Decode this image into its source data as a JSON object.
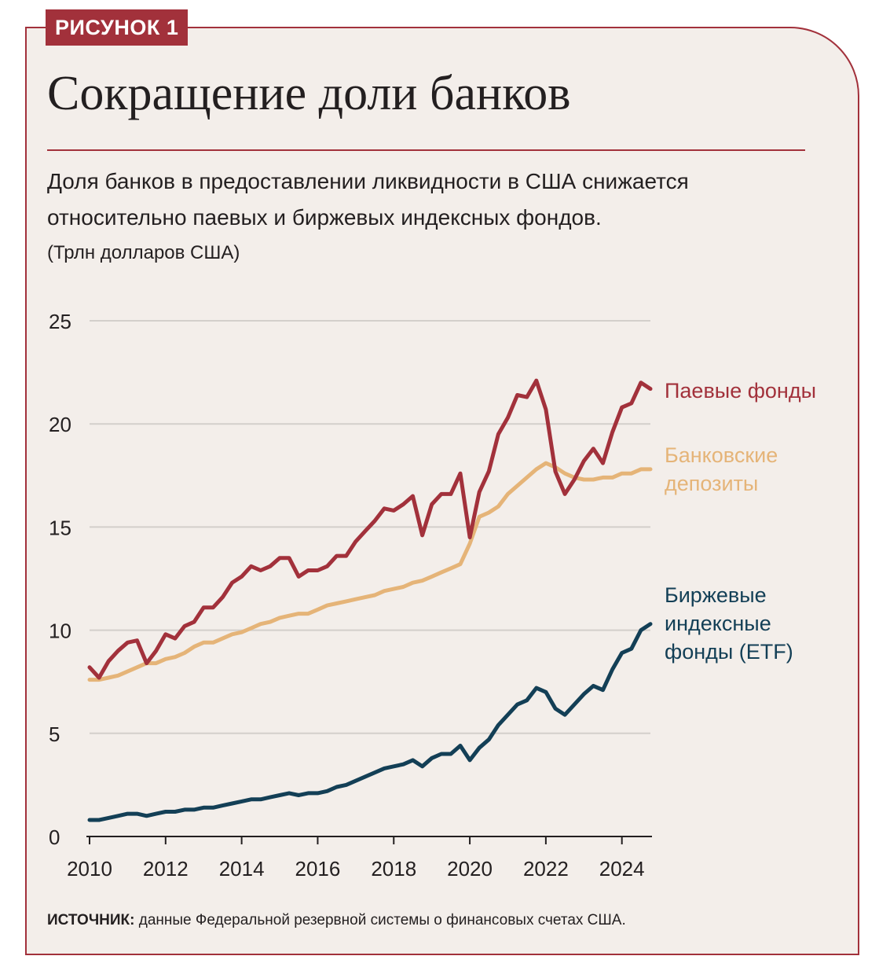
{
  "figure_label": "РИСУНОК 1",
  "title": "Сокращение доли банков",
  "subtitle": "Доля банков в предоставлении ликвидности в США снижается относительно паевых и биржевых индексных фондов.",
  "units": "(Трлн долларов США)",
  "source_label": "ИСТОЧНИК:",
  "source_text": " данные Федеральной резервной системы о финансовых счетах США.",
  "colors": {
    "accent": "#a2313b",
    "mutual_funds": "#a2313b",
    "bank_deposits": "#e5b478",
    "etf": "#133f56",
    "grid": "#d3cfcb",
    "background": "#f3eeea"
  },
  "chart_data": {
    "type": "line",
    "title": "Сокращение доли банков",
    "xlabel": "",
    "ylabel": "(Трлн долларов США)",
    "xlim": [
      2010,
      2024.75
    ],
    "ylim": [
      0,
      25
    ],
    "x_ticks": [
      "2010",
      "2012",
      "2014",
      "2016",
      "2018",
      "2020",
      "2022",
      "2024"
    ],
    "x_tick_values": [
      2010,
      2012,
      2014,
      2016,
      2018,
      2020,
      2022,
      2024
    ],
    "y_ticks": [
      "0",
      "5",
      "10",
      "15",
      "20",
      "25"
    ],
    "y_tick_values": [
      0,
      5,
      10,
      15,
      20,
      25
    ],
    "grid": true,
    "legend": "inline-right",
    "series": [
      {
        "name": "Паевые фонды",
        "key": "mutual_funds",
        "label_lines": [
          "Паевые фонды"
        ],
        "x": [
          2010,
          2010.25,
          2010.5,
          2010.75,
          2011,
          2011.25,
          2011.5,
          2011.75,
          2012,
          2012.25,
          2012.5,
          2012.75,
          2013,
          2013.25,
          2013.5,
          2013.75,
          2014,
          2014.25,
          2014.5,
          2014.75,
          2015,
          2015.25,
          2015.5,
          2015.75,
          2016,
          2016.25,
          2016.5,
          2016.75,
          2017,
          2017.25,
          2017.5,
          2017.75,
          2018,
          2018.25,
          2018.5,
          2018.75,
          2019,
          2019.25,
          2019.5,
          2019.75,
          2020,
          2020.25,
          2020.5,
          2020.75,
          2021,
          2021.25,
          2021.5,
          2021.75,
          2022,
          2022.25,
          2022.5,
          2022.75,
          2023,
          2023.25,
          2023.5,
          2023.75,
          2024,
          2024.25,
          2024.5,
          2024.75
        ],
        "values": [
          8.2,
          7.7,
          8.5,
          9.0,
          9.4,
          9.5,
          8.4,
          9.0,
          9.8,
          9.6,
          10.2,
          10.4,
          11.1,
          11.1,
          11.6,
          12.3,
          12.6,
          13.1,
          12.9,
          13.1,
          13.5,
          13.5,
          12.6,
          12.9,
          12.9,
          13.1,
          13.6,
          13.6,
          14.3,
          14.8,
          15.3,
          15.9,
          15.8,
          16.1,
          16.5,
          14.6,
          16.1,
          16.6,
          16.6,
          17.6,
          14.5,
          16.7,
          17.7,
          19.5,
          20.3,
          21.4,
          21.3,
          22.1,
          20.7,
          17.7,
          16.6,
          17.3,
          18.2,
          18.8,
          18.1,
          19.6,
          20.8,
          21.0,
          22.0,
          21.7
        ]
      },
      {
        "name": "Банковские депозиты",
        "key": "bank_deposits",
        "label_lines": [
          "Банковские",
          "депозиты"
        ],
        "x": [
          2010,
          2010.25,
          2010.5,
          2010.75,
          2011,
          2011.25,
          2011.5,
          2011.75,
          2012,
          2012.25,
          2012.5,
          2012.75,
          2013,
          2013.25,
          2013.5,
          2013.75,
          2014,
          2014.25,
          2014.5,
          2014.75,
          2015,
          2015.25,
          2015.5,
          2015.75,
          2016,
          2016.25,
          2016.5,
          2016.75,
          2017,
          2017.25,
          2017.5,
          2017.75,
          2018,
          2018.25,
          2018.5,
          2018.75,
          2019,
          2019.25,
          2019.5,
          2019.75,
          2020,
          2020.25,
          2020.5,
          2020.75,
          2021,
          2021.25,
          2021.5,
          2021.75,
          2022,
          2022.25,
          2022.5,
          2022.75,
          2023,
          2023.25,
          2023.5,
          2023.75,
          2024,
          2024.25,
          2024.5,
          2024.75
        ],
        "values": [
          7.6,
          7.6,
          7.7,
          7.8,
          8.0,
          8.2,
          8.4,
          8.4,
          8.6,
          8.7,
          8.9,
          9.2,
          9.4,
          9.4,
          9.6,
          9.8,
          9.9,
          10.1,
          10.3,
          10.4,
          10.6,
          10.7,
          10.8,
          10.8,
          11.0,
          11.2,
          11.3,
          11.4,
          11.5,
          11.6,
          11.7,
          11.9,
          12.0,
          12.1,
          12.3,
          12.4,
          12.6,
          12.8,
          13.0,
          13.2,
          14.2,
          15.5,
          15.7,
          16.0,
          16.6,
          17.0,
          17.4,
          17.8,
          18.1,
          17.9,
          17.6,
          17.4,
          17.3,
          17.3,
          17.4,
          17.4,
          17.6,
          17.6,
          17.8,
          17.8
        ]
      },
      {
        "name": "Биржевые индексные фонды (ETF)",
        "key": "etf",
        "label_lines": [
          "Биржевые",
          "индексные",
          "фонды (ETF)"
        ],
        "x": [
          2010,
          2010.25,
          2010.5,
          2010.75,
          2011,
          2011.25,
          2011.5,
          2011.75,
          2012,
          2012.25,
          2012.5,
          2012.75,
          2013,
          2013.25,
          2013.5,
          2013.75,
          2014,
          2014.25,
          2014.5,
          2014.75,
          2015,
          2015.25,
          2015.5,
          2015.75,
          2016,
          2016.25,
          2016.5,
          2016.75,
          2017,
          2017.25,
          2017.5,
          2017.75,
          2018,
          2018.25,
          2018.5,
          2018.75,
          2019,
          2019.25,
          2019.5,
          2019.75,
          2020,
          2020.25,
          2020.5,
          2020.75,
          2021,
          2021.25,
          2021.5,
          2021.75,
          2022,
          2022.25,
          2022.5,
          2022.75,
          2023,
          2023.25,
          2023.5,
          2023.75,
          2024,
          2024.25,
          2024.5,
          2024.75
        ],
        "values": [
          0.8,
          0.8,
          0.9,
          1.0,
          1.1,
          1.1,
          1.0,
          1.1,
          1.2,
          1.2,
          1.3,
          1.3,
          1.4,
          1.4,
          1.5,
          1.6,
          1.7,
          1.8,
          1.8,
          1.9,
          2.0,
          2.1,
          2.0,
          2.1,
          2.1,
          2.2,
          2.4,
          2.5,
          2.7,
          2.9,
          3.1,
          3.3,
          3.4,
          3.5,
          3.7,
          3.4,
          3.8,
          4.0,
          4.0,
          4.4,
          3.7,
          4.3,
          4.7,
          5.4,
          5.9,
          6.4,
          6.6,
          7.2,
          7.0,
          6.2,
          5.9,
          6.4,
          6.9,
          7.3,
          7.1,
          8.1,
          8.9,
          9.1,
          10.0,
          10.3
        ]
      }
    ]
  }
}
